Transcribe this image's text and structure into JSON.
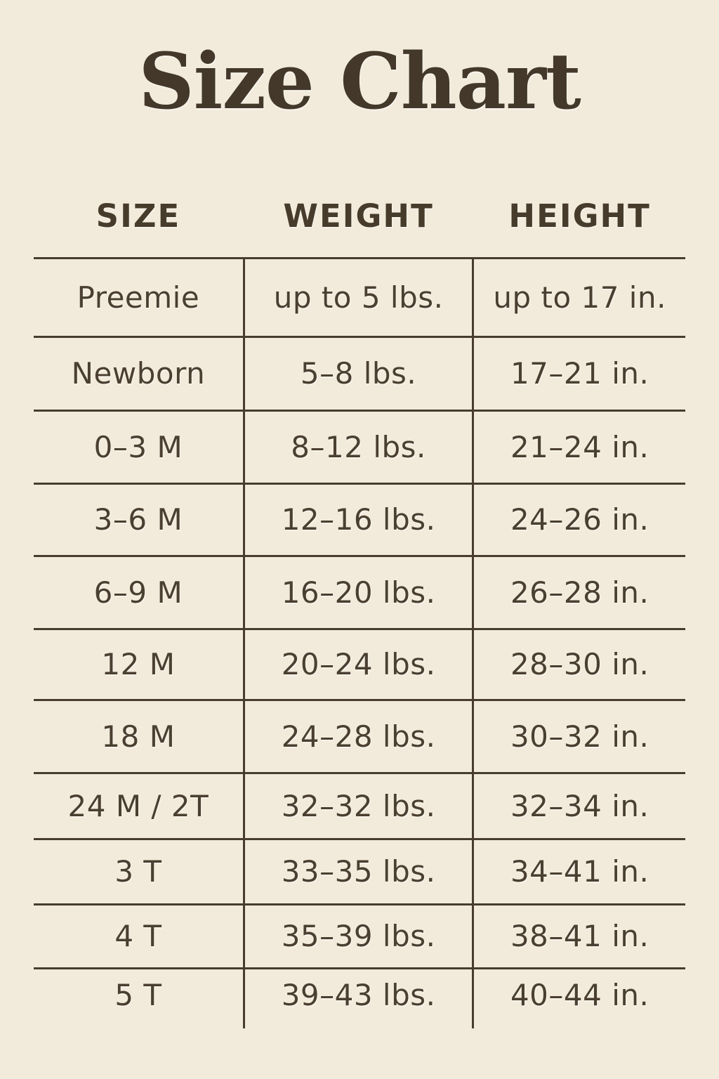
{
  "title": "Size Chart",
  "colors": {
    "background": "#f2ebdc",
    "title_text": "#43382a",
    "body_text": "#4a3f30",
    "line": "#473c2e"
  },
  "chart_data": {
    "type": "table",
    "title": "Size Chart",
    "columns": [
      "SIZE",
      "WEIGHT",
      "HEIGHT"
    ],
    "rows": [
      [
        "Preemie",
        "up to 5 lbs.",
        "up to 17 in."
      ],
      [
        "Newborn",
        "5–8 lbs.",
        "17–21 in."
      ],
      [
        "0–3 M",
        "8–12 lbs.",
        "21–24 in."
      ],
      [
        "3–6 M",
        "12–16 lbs.",
        "24–26 in."
      ],
      [
        "6–9 M",
        "16–20 lbs.",
        "26–28 in."
      ],
      [
        "12 M",
        "20–24 lbs.",
        "28–30 in."
      ],
      [
        "18 M",
        "24–28 lbs.",
        "30–32 in."
      ],
      [
        "24 M / 2T",
        "32–32 lbs.",
        "32–34 in."
      ],
      [
        "3 T",
        "33–35 lbs.",
        "34–41 in."
      ],
      [
        "4 T",
        "35–39 lbs.",
        "38–41 in."
      ],
      [
        "5 T",
        "39–43 lbs.",
        "40–44 in."
      ]
    ]
  }
}
